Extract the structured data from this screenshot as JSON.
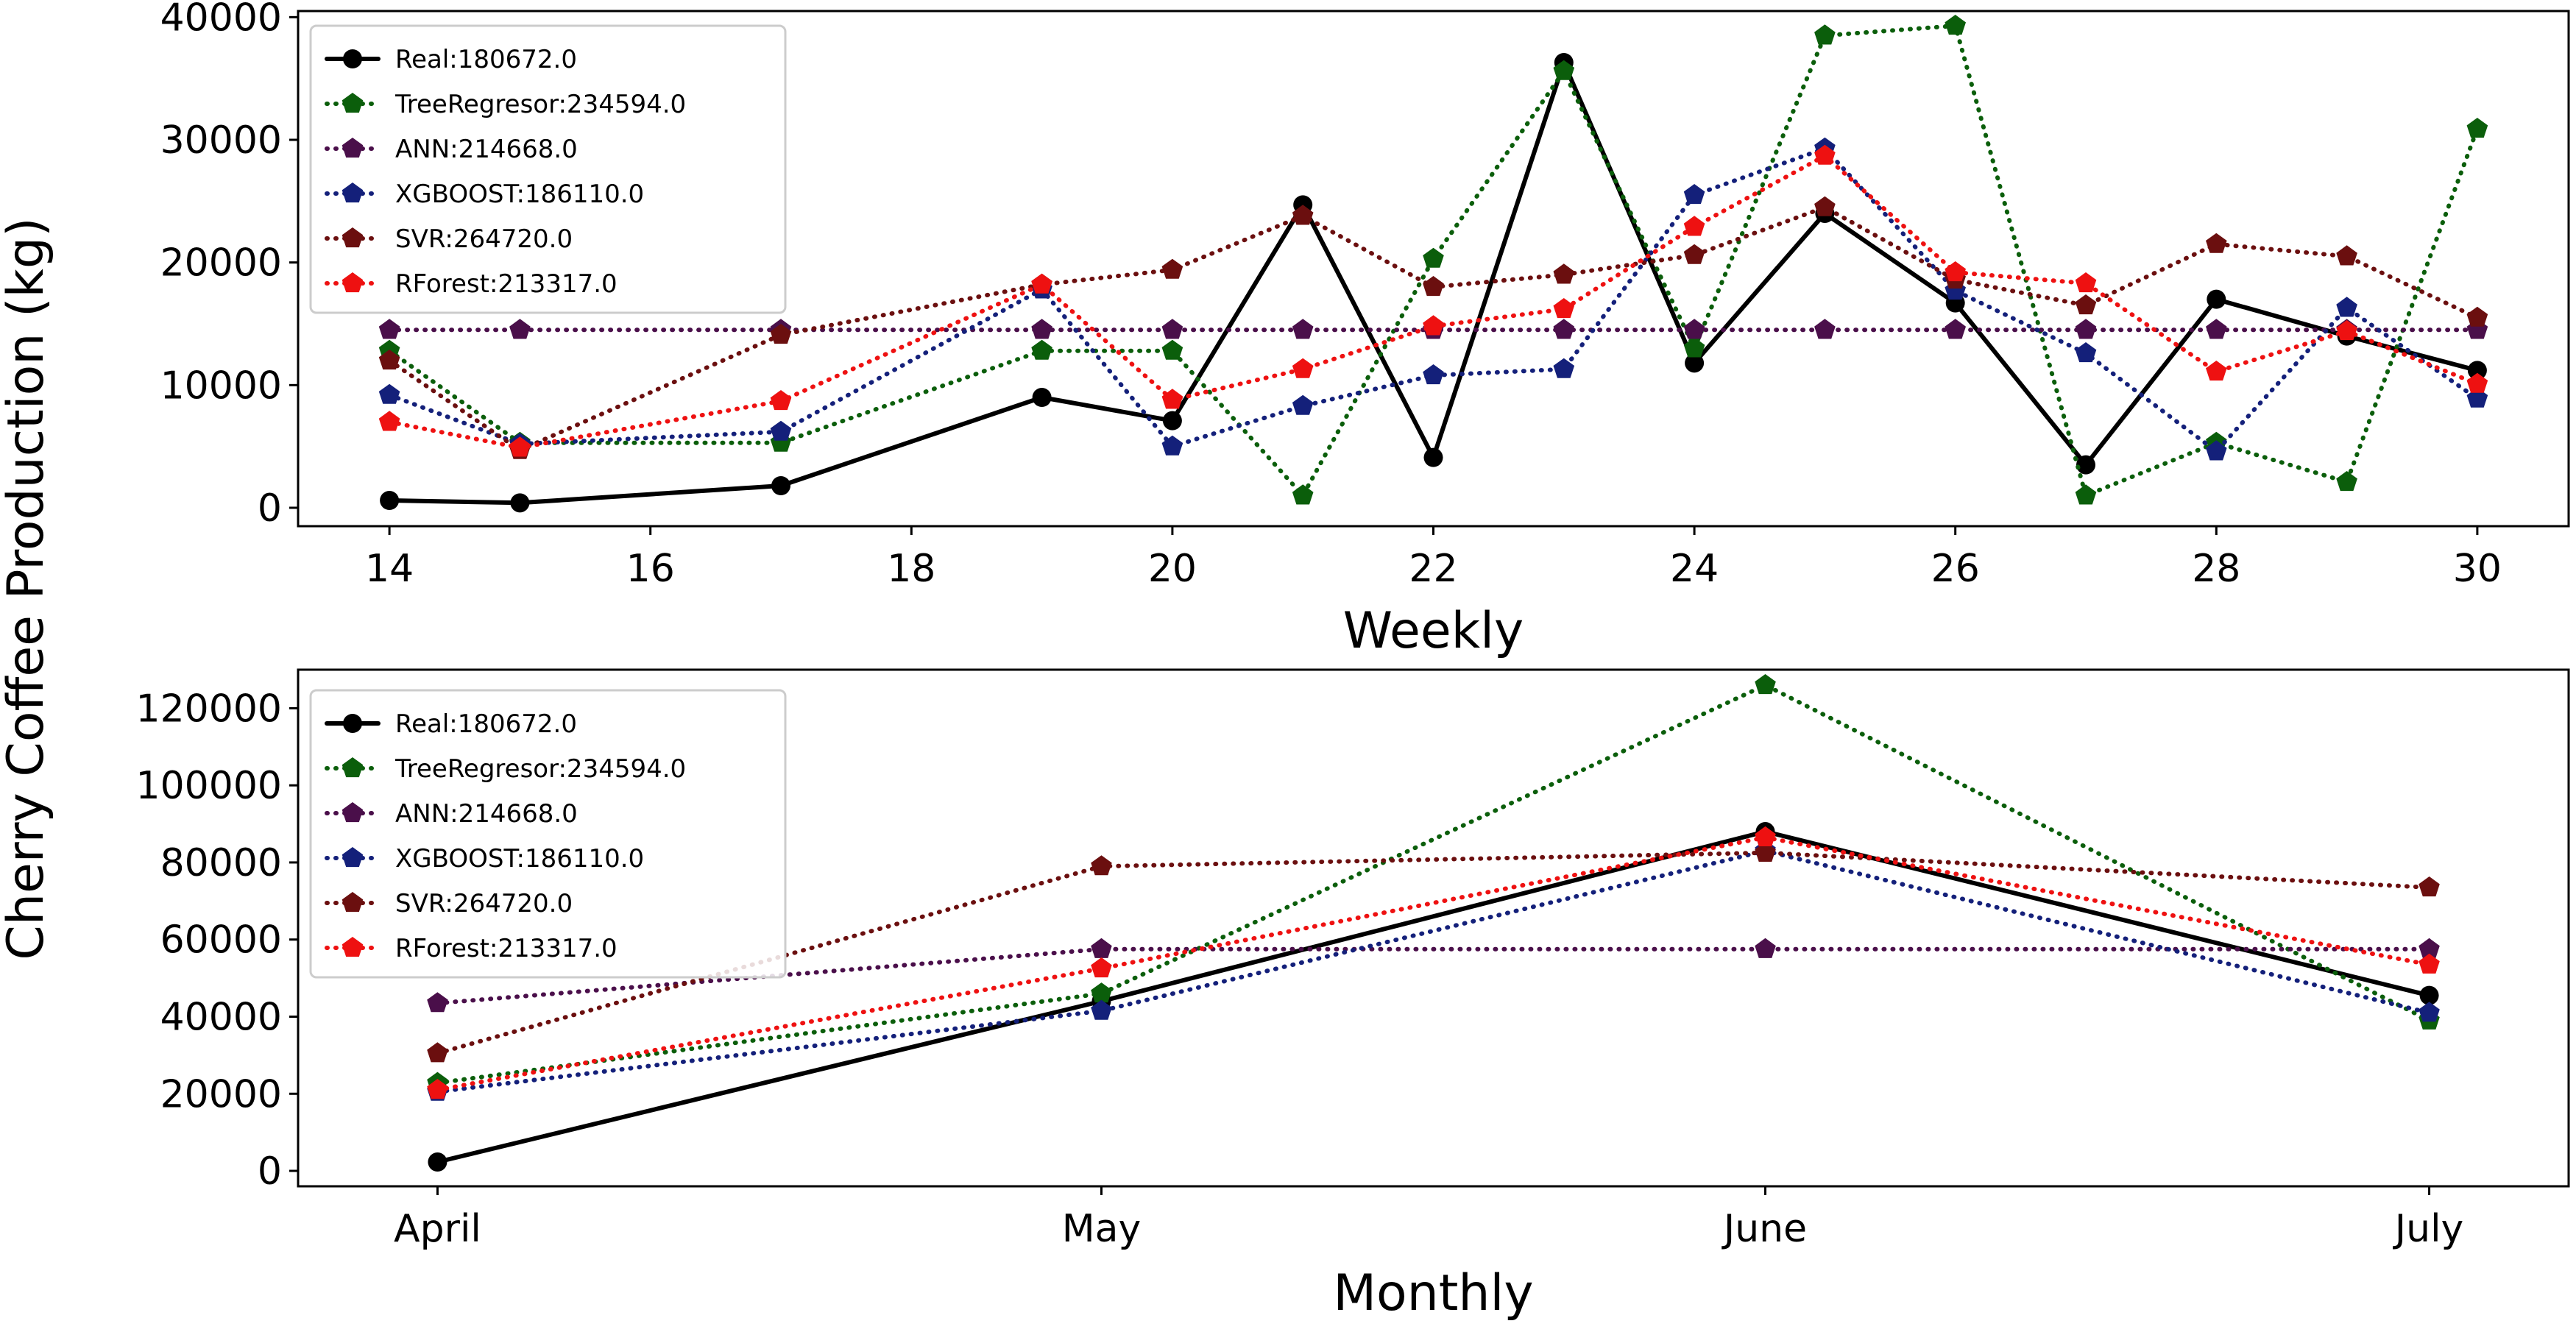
{
  "figure": {
    "shared_ylabel": "Cherry Coffee Production (kg)"
  },
  "chart_data": [
    {
      "type": "line",
      "title": "",
      "xlabel": "Weekly",
      "ylabel": "Cherry Coffee Production (kg)",
      "xlim": [
        13.3,
        30.7
      ],
      "ylim": [
        -1500,
        40500
      ],
      "xticks": [
        14,
        16,
        18,
        20,
        22,
        24,
        26,
        28,
        30
      ],
      "yticks": [
        0,
        10000,
        20000,
        30000,
        40000
      ],
      "x": [
        14,
        15,
        17,
        19,
        20,
        21,
        22,
        23,
        24,
        25,
        26,
        27,
        28,
        29,
        30
      ],
      "legend_position": "upper-left",
      "series": [
        {
          "name": "Real:180672.0",
          "color": "#000000",
          "style": "solid",
          "marker": "circle",
          "values": [
            600,
            400,
            1800,
            9000,
            7100,
            24700,
            4100,
            36300,
            11800,
            24000,
            16700,
            3500,
            17000,
            14000,
            11200
          ]
        },
        {
          "name": "TreeRegresor:234594.0",
          "color": "#0b5e0b",
          "style": "dotted",
          "marker": "pentagon",
          "values": [
            12800,
            5300,
            5300,
            12800,
            12800,
            1000,
            20300,
            35600,
            13000,
            38500,
            39300,
            1000,
            5300,
            2100,
            30900
          ]
        },
        {
          "name": "ANN:214668.0",
          "color": "#4a0f4a",
          "style": "dotted",
          "marker": "pentagon",
          "values": [
            14500,
            14500,
            14500,
            14500,
            14500,
            14500,
            14500,
            14500,
            14500,
            14500,
            14500,
            14500,
            14500,
            14500,
            14500
          ]
        },
        {
          "name": "XGBOOST:186110.0",
          "color": "#14207a",
          "style": "dotted",
          "marker": "pentagon",
          "values": [
            9200,
            5200,
            6200,
            17800,
            5000,
            8300,
            10800,
            11300,
            25500,
            29300,
            17700,
            12600,
            4600,
            16300,
            8900
          ]
        },
        {
          "name": "SVR:264720.0",
          "color": "#6b0f0f",
          "style": "dotted",
          "marker": "pentagon",
          "values": [
            12000,
            4700,
            14100,
            18200,
            19400,
            23800,
            18000,
            19000,
            20600,
            24500,
            18600,
            16500,
            21500,
            20500,
            15500
          ]
        },
        {
          "name": "RForest:213317.0",
          "color": "#ee1111",
          "style": "dotted",
          "marker": "pentagon",
          "values": [
            7000,
            4900,
            8700,
            18200,
            8800,
            11300,
            14800,
            16200,
            22900,
            28700,
            19200,
            18300,
            11100,
            14400,
            10100
          ]
        }
      ]
    },
    {
      "type": "line",
      "title": "",
      "xlabel": "Monthly",
      "ylabel": "Cherry Coffee Production (kg)",
      "ylim": [
        -4000,
        130000
      ],
      "yticks": [
        0,
        20000,
        40000,
        60000,
        80000,
        100000,
        120000
      ],
      "categories": [
        "April",
        "May",
        "June",
        "July"
      ],
      "legend_position": "upper-left",
      "series": [
        {
          "name": "Real:180672.0",
          "color": "#000000",
          "style": "solid",
          "marker": "circle",
          "values": [
            2300,
            44000,
            88000,
            45500
          ]
        },
        {
          "name": "TreeRegresor:234594.0",
          "color": "#0b5e0b",
          "style": "dotted",
          "marker": "pentagon",
          "values": [
            22800,
            46000,
            126000,
            39000
          ]
        },
        {
          "name": "ANN:214668.0",
          "color": "#4a0f4a",
          "style": "dotted",
          "marker": "pentagon",
          "values": [
            43500,
            57500,
            57500,
            57500
          ]
        },
        {
          "name": "XGBOOST:186110.0",
          "color": "#14207a",
          "style": "dotted",
          "marker": "pentagon",
          "values": [
            20500,
            41500,
            83000,
            41000
          ]
        },
        {
          "name": "SVR:264720.0",
          "color": "#6b0f0f",
          "style": "dotted",
          "marker": "pentagon",
          "values": [
            30500,
            79000,
            82500,
            73500
          ]
        },
        {
          "name": "RForest:213317.0",
          "color": "#ee1111",
          "style": "dotted",
          "marker": "pentagon",
          "values": [
            21000,
            52500,
            86500,
            53500
          ]
        }
      ]
    }
  ]
}
